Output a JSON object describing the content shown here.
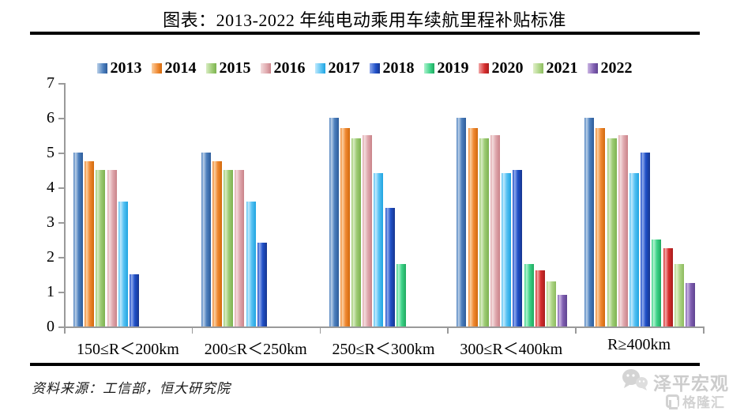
{
  "header": {
    "title": "图表：2013-2022 年纯电动乘用车续航里程补贴标准"
  },
  "footer": {
    "source": "资料来源：工信部，恒大研究院",
    "watermark_top": "泽平宏观",
    "watermark_bottom": "格隆汇"
  },
  "icons": {
    "wechat_chat_bubbles": "wechat-icon",
    "gelonghui_logo": "gelonghui-icon"
  },
  "chart_data": {
    "type": "bar",
    "title": "图表：2013-2022 年纯电动乘用车续航里程补贴标准",
    "xlabel": "",
    "ylabel": "",
    "ylim": [
      0,
      7
    ],
    "yticks": [
      0,
      1,
      2,
      3,
      4,
      5,
      6,
      7
    ],
    "grid": false,
    "legend_position": "top",
    "categories": [
      "150≤R＜200km",
      "200≤R＜250km",
      "250≤R＜300km",
      "300≤R＜400km",
      "R≥400km"
    ],
    "series": [
      {
        "name": "2013",
        "colors": {
          "light": "#B9CFE8",
          "mid": "#4D80BE",
          "dark": "#2D5C9A"
        },
        "values": [
          5.0,
          5.0,
          6.0,
          6.0,
          6.0
        ]
      },
      {
        "name": "2014",
        "colors": {
          "light": "#FBD0A3",
          "mid": "#F08A33",
          "dark": "#D2690B"
        },
        "values": [
          4.75,
          4.75,
          5.7,
          5.7,
          5.7
        ]
      },
      {
        "name": "2015",
        "colors": {
          "light": "#D9ECC3",
          "mid": "#9DCB74",
          "dark": "#7DB250"
        },
        "values": [
          4.5,
          4.5,
          5.4,
          5.4,
          5.4
        ]
      },
      {
        "name": "2016",
        "colors": {
          "light": "#F3DCDD",
          "mid": "#E0A9AE",
          "dark": "#C98289"
        },
        "values": [
          4.5,
          4.5,
          5.5,
          5.5,
          5.5
        ]
      },
      {
        "name": "2017",
        "colors": {
          "light": "#C0E9FC",
          "mid": "#58C2F3",
          "dark": "#1FA4E0"
        },
        "values": [
          3.6,
          3.6,
          4.4,
          4.4,
          4.4
        ]
      },
      {
        "name": "2018",
        "colors": {
          "light": "#8FA9EC",
          "mid": "#2050C8",
          "dark": "#16368F"
        },
        "values": [
          1.5,
          2.4,
          3.4,
          4.5,
          5.0
        ]
      },
      {
        "name": "2019",
        "colors": {
          "light": "#AFF2CE",
          "mid": "#3ED389",
          "dark": "#1FA95F"
        },
        "values": [
          null,
          null,
          1.8,
          1.8,
          2.5
        ]
      },
      {
        "name": "2020",
        "colors": {
          "light": "#F2A9A9",
          "mid": "#D62E2E",
          "dark": "#A81D1D"
        },
        "values": [
          null,
          null,
          null,
          1.62,
          2.25
        ]
      },
      {
        "name": "2021",
        "colors": {
          "light": "#E2EFCB",
          "mid": "#AED687",
          "dark": "#8CBA5E"
        },
        "values": [
          null,
          null,
          null,
          1.3,
          1.8
        ]
      },
      {
        "name": "2022",
        "colors": {
          "light": "#CBB6E3",
          "mid": "#8160B2",
          "dark": "#5F4390"
        },
        "values": [
          null,
          null,
          null,
          0.91,
          1.26
        ]
      }
    ]
  }
}
